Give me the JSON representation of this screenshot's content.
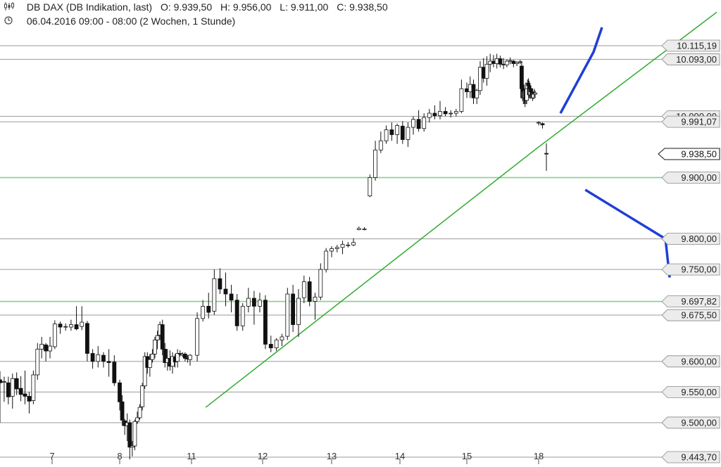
{
  "header": {
    "instrument": "DB DAX (DB Indikation, last)",
    "open": "O: 9.939,50",
    "high": "H: 9.956,00",
    "low": "L: 9.911,00",
    "close": "C: 9.938,50",
    "period": "06.04.2016 09:00 - 08:00 (2 Wochen, 1 Stunde)"
  },
  "icons": {
    "header_chart": "candlestick-icon",
    "header_clock": "clock-icon"
  },
  "colors": {
    "candle_up": "#ffffff",
    "candle_down": "#111111",
    "level_line": "#9a9a9a",
    "green_line": "#2eaa2e",
    "arrow": "#1f3fd6",
    "label_bg": "#ececec"
  },
  "chart_data": {
    "type": "candlestick",
    "title": "DB DAX (DB Indikation, last)",
    "ylim": [
      9428,
      10140
    ],
    "x_ticks": [
      "7",
      "8",
      "11",
      "12",
      "13",
      "14",
      "15",
      "18"
    ],
    "price_levels": [
      {
        "value": 10115.19,
        "label": "10.115,19",
        "color": "gray"
      },
      {
        "value": 10093.0,
        "label": "10.093,00",
        "color": "gray"
      },
      {
        "value": 10000.0,
        "label": "10.000,00",
        "color": "gray"
      },
      {
        "value": 9991.07,
        "label": "9.991,07",
        "color": "gray"
      },
      {
        "value": 9900.0,
        "label": "9.900,00",
        "color": "green"
      },
      {
        "value": 9800.0,
        "label": "9.800,00",
        "color": "gray"
      },
      {
        "value": 9750.0,
        "label": "9.750,00",
        "color": "gray"
      },
      {
        "value": 9697.82,
        "label": "9.697,82",
        "color": "green"
      },
      {
        "value": 9675.5,
        "label": "9.675,50",
        "color": "gray"
      },
      {
        "value": 9600.0,
        "label": "9.600,00",
        "color": "gray"
      },
      {
        "value": 9550.0,
        "label": "9.550,00",
        "color": "gray"
      },
      {
        "value": 9500.0,
        "label": "9.500,00",
        "color": "gray"
      },
      {
        "value": 9443.7,
        "label": "9.443,70",
        "color": "gray"
      }
    ],
    "current": {
      "value": 9938.5,
      "label": "9.938,50"
    },
    "trendline": [
      {
        "x": 11.2,
        "y": 9525
      },
      {
        "x": 18.0,
        "y": 9950
      },
      {
        "x": 20.5,
        "y": 10170
      }
    ],
    "arrows": [
      {
        "direction": "up",
        "from": {
          "x": 18.5,
          "y": 10005
        },
        "tip": {
          "x": 19.3,
          "y": 10105
        }
      },
      {
        "direction": "down",
        "from": {
          "x": 19.1,
          "y": 9880
        },
        "tip": {
          "x": 20.0,
          "y": 9800
        }
      }
    ],
    "candles": [
      [
        6.0,
        9570,
        9584,
        9500,
        9565
      ],
      [
        6.08,
        9566,
        9575,
        9534,
        9567
      ],
      [
        6.16,
        9565,
        9575,
        9530,
        9542
      ],
      [
        6.24,
        9543,
        9580,
        9523,
        9572
      ],
      [
        6.32,
        9572,
        9582,
        9545,
        9555
      ],
      [
        6.4,
        9556,
        9576,
        9535,
        9546
      ],
      [
        6.48,
        9547,
        9585,
        9530,
        9543
      ],
      [
        6.56,
        9543,
        9550,
        9515,
        9535
      ],
      [
        6.64,
        9536,
        9585,
        9530,
        9578
      ],
      [
        6.72,
        9578,
        9630,
        9570,
        9620
      ],
      [
        6.8,
        9620,
        9640,
        9605,
        9628
      ],
      [
        6.88,
        9627,
        9630,
        9600,
        9617
      ],
      [
        6.96,
        9617,
        9640,
        9605,
        9625
      ],
      [
        7.04,
        9624,
        9667,
        9620,
        9661
      ],
      [
        7.12,
        9661,
        9665,
        9645,
        9656
      ],
      [
        7.2,
        9656,
        9662,
        9650,
        9657
      ],
      [
        7.28,
        9656,
        9668,
        9650,
        9660
      ],
      [
        7.36,
        9660,
        9690,
        9651,
        9653
      ],
      [
        7.44,
        9657,
        9690,
        9651,
        9664
      ],
      [
        7.52,
        9662,
        9666,
        9600,
        9613
      ],
      [
        7.6,
        9613,
        9620,
        9588,
        9600
      ],
      [
        7.68,
        9600,
        9625,
        9590,
        9611
      ],
      [
        7.76,
        9610,
        9615,
        9590,
        9600
      ],
      [
        7.84,
        9600,
        9620,
        9575,
        9598
      ],
      [
        7.92,
        9599,
        9610,
        9560,
        9565
      ],
      [
        8.0,
        9565,
        9570,
        9520,
        9534
      ],
      [
        8.08,
        9534,
        9545,
        9495,
        9504
      ],
      [
        8.16,
        9503,
        9506,
        9480,
        9495
      ],
      [
        8.24,
        9495,
        9515,
        9470,
        9500
      ],
      [
        8.32,
        9500,
        9505,
        9440,
        9460
      ],
      [
        8.4,
        9460,
        9470,
        9445,
        9462
      ],
      [
        8.48,
        9462,
        9505,
        9455,
        9502
      ],
      [
        8.56,
        9502,
        9518,
        9498,
        9508
      ],
      [
        8.64,
        9508,
        9530,
        9505,
        9525
      ],
      [
        8.72,
        9526,
        9565,
        9520,
        9560
      ],
      [
        8.8,
        9560,
        9615,
        9555,
        9608
      ],
      [
        8.88,
        9608,
        9615,
        9580,
        9590
      ],
      [
        8.96,
        9590,
        9612,
        9575,
        9603
      ],
      [
        9.04,
        9603,
        9620,
        9598,
        9612
      ],
      [
        9.12,
        9612,
        9640,
        9605,
        9635
      ],
      [
        9.2,
        9635,
        9650,
        9620,
        9642
      ],
      [
        9.28,
        9643,
        9665,
        9635,
        9660
      ],
      [
        9.36,
        9660,
        9668,
        9610,
        9620
      ],
      [
        9.44,
        9620,
        9630,
        9590,
        9598
      ],
      [
        9.52,
        9598,
        9620,
        9585,
        9605
      ],
      [
        9.6,
        9605,
        9618,
        9585,
        9592
      ],
      [
        9.68,
        9592,
        9615,
        9580,
        9608
      ],
      [
        9.76,
        9607,
        9612,
        9590,
        9599
      ],
      [
        9.84,
        9600,
        9620,
        9590,
        9613
      ],
      [
        9.92,
        9613,
        9618,
        9608,
        9612
      ],
      [
        10.0,
        9610,
        9615,
        9607,
        9612
      ],
      [
        10.08,
        9612,
        9615,
        9600,
        9605
      ],
      [
        10.16,
        9605,
        9610,
        9598,
        9604
      ],
      [
        10.24,
        9603,
        9612,
        9593,
        9610
      ],
      [
        11.08,
        9610,
        9680,
        9600,
        9670
      ],
      [
        11.16,
        9670,
        9700,
        9665,
        9690
      ],
      [
        11.24,
        9690,
        9712,
        9670,
        9680
      ],
      [
        11.32,
        9682,
        9750,
        9676,
        9735
      ],
      [
        11.4,
        9735,
        9752,
        9710,
        9718
      ],
      [
        11.48,
        9718,
        9745,
        9690,
        9710
      ],
      [
        11.56,
        9710,
        9725,
        9680,
        9700
      ],
      [
        11.64,
        9700,
        9710,
        9650,
        9658
      ],
      [
        11.72,
        9658,
        9695,
        9650,
        9690
      ],
      [
        11.8,
        9690,
        9720,
        9680,
        9703
      ],
      [
        11.88,
        9703,
        9715,
        9660,
        9690
      ],
      [
        11.96,
        9690,
        9712,
        9680,
        9700
      ],
      [
        12.04,
        9700,
        9708,
        9620,
        9628
      ],
      [
        12.12,
        9628,
        9642,
        9615,
        9622
      ],
      [
        12.2,
        9622,
        9638,
        9617,
        9635
      ],
      [
        12.28,
        9635,
        9645,
        9625,
        9640
      ],
      [
        12.36,
        9641,
        9720,
        9635,
        9710
      ],
      [
        12.44,
        9710,
        9725,
        9648,
        9660
      ],
      [
        12.52,
        9660,
        9718,
        9640,
        9703
      ],
      [
        12.6,
        9704,
        9740,
        9695,
        9730
      ],
      [
        12.68,
        9730,
        9738,
        9690,
        9698
      ],
      [
        12.76,
        9698,
        9712,
        9668,
        9705
      ],
      [
        12.84,
        9705,
        9760,
        9700,
        9750
      ],
      [
        12.92,
        9750,
        9785,
        9745,
        9780
      ],
      [
        13.0,
        9780,
        9788,
        9770,
        9784
      ],
      [
        13.08,
        9784,
        9790,
        9778,
        9786
      ],
      [
        13.16,
        9786,
        9797,
        9775,
        9791
      ],
      [
        13.24,
        9790,
        9795,
        9786,
        9790
      ],
      [
        13.32,
        9790,
        9801,
        9788,
        9794
      ],
      [
        13.4,
        9815,
        9820,
        9814,
        9817
      ],
      [
        13.48,
        9815,
        9819,
        9814,
        9816
      ],
      [
        13.56,
        9870,
        9905,
        9868,
        9900
      ],
      [
        13.64,
        9900,
        9960,
        9895,
        9945
      ],
      [
        13.72,
        9945,
        9975,
        9940,
        9960
      ],
      [
        13.8,
        9960,
        9985,
        9955,
        9978
      ],
      [
        13.88,
        9978,
        9990,
        9960,
        9970
      ],
      [
        13.96,
        9970,
        9988,
        9955,
        9985
      ],
      [
        14.04,
        9984,
        9992,
        9955,
        9962
      ],
      [
        14.12,
        9962,
        9990,
        9950,
        9982
      ],
      [
        14.2,
        9982,
        10000,
        9970,
        9995
      ],
      [
        14.28,
        9995,
        10010,
        9975,
        9980
      ],
      [
        14.36,
        9980,
        10005,
        9975,
        9998
      ],
      [
        14.44,
        9998,
        10012,
        9990,
        10005
      ],
      [
        14.52,
        10005,
        10018,
        9995,
        10001
      ],
      [
        14.6,
        10001,
        10025,
        9995,
        10008
      ],
      [
        14.68,
        10008,
        10015,
        10000,
        10004
      ],
      [
        14.76,
        10004,
        10010,
        9998,
        10005
      ],
      [
        14.84,
        10005,
        10012,
        10000,
        10008
      ],
      [
        14.92,
        10008,
        10060,
        10005,
        10045
      ],
      [
        15.0,
        10045,
        10055,
        10030,
        10040
      ],
      [
        15.08,
        10040,
        10065,
        10030,
        10052
      ],
      [
        15.16,
        10052,
        10060,
        10020,
        10030
      ],
      [
        15.24,
        10030,
        10045,
        10020,
        10042
      ],
      [
        15.32,
        10042,
        10090,
        10035,
        10080
      ],
      [
        15.4,
        10080,
        10095,
        10055,
        10062
      ],
      [
        15.48,
        10062,
        10098,
        10050,
        10085
      ],
      [
        15.56,
        10085,
        10102,
        10072,
        10090
      ],
      [
        15.64,
        10090,
        10100,
        10080,
        10086
      ],
      [
        15.72,
        10086,
        10102,
        10078,
        10094
      ],
      [
        15.8,
        10094,
        10099,
        10080,
        10085
      ],
      [
        15.88,
        10085,
        10095,
        10077,
        10084
      ],
      [
        15.96,
        10084,
        10093,
        10080,
        10090
      ],
      [
        16.04,
        10090,
        10096,
        10085,
        10091
      ],
      [
        16.12,
        10090,
        10092,
        10080,
        10086
      ],
      [
        16.2,
        10086,
        10090,
        10082,
        10088
      ],
      [
        16.28,
        10088,
        10092,
        10085,
        10089
      ],
      [
        16.36,
        10082,
        10090,
        10040,
        10045
      ],
      [
        16.44,
        10045,
        10055,
        10025,
        10030
      ],
      [
        16.52,
        10030,
        10050,
        10020,
        10040
      ],
      [
        16.6,
        10040,
        10052,
        10020,
        10030
      ],
      [
        16.68,
        10030,
        10045,
        10015,
        10042
      ],
      [
        16.76,
        10042,
        10055,
        10020,
        10026
      ],
      [
        16.84,
        10026,
        10050,
        10020,
        10045
      ],
      [
        16.92,
        10045,
        10060,
        10035,
        10054
      ],
      [
        17.0,
        10054,
        10062,
        10040,
        10050
      ],
      [
        17.08,
        10050,
        10058,
        10030,
        10035
      ],
      [
        17.16,
        10035,
        10050,
        10028,
        10045
      ],
      [
        17.24,
        10045,
        10050,
        10035,
        10040
      ],
      [
        17.32,
        10040,
        10046,
        10030,
        10035
      ],
      [
        17.4,
        10035,
        10042,
        10025,
        10030
      ],
      [
        17.48,
        10030,
        10040,
        10028,
        10038
      ],
      [
        17.56,
        10038,
        10045,
        10030,
        10036
      ],
      [
        17.64,
        10036,
        10042,
        10032,
        10038
      ],
      [
        18.0,
        9990,
        9992,
        9985,
        9990
      ],
      [
        18.08,
        9988,
        9990,
        9980,
        9986
      ],
      [
        18.16,
        9939.5,
        9956,
        9911,
        9938.5
      ]
    ]
  }
}
